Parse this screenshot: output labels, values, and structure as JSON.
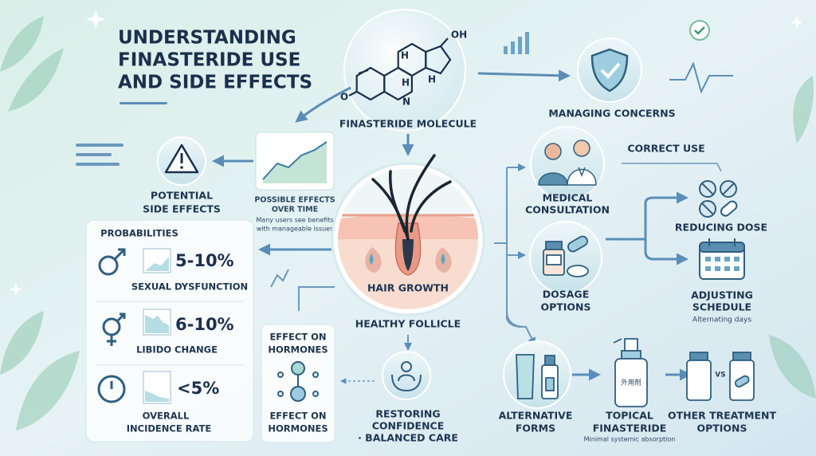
{
  "title": {
    "lines": [
      "UNDERSTANDING",
      "FINASTERIDE USE",
      "AND SIDE EFFECTS"
    ]
  },
  "molecule": {
    "atoms": [
      "OH",
      "H",
      "H",
      "H",
      "N",
      "O"
    ],
    "label": "FINASTERIDE MOLECULE"
  },
  "managing_concerns": {
    "label": "MANAGING CONCERNS"
  },
  "potential_side_effects": {
    "lines": [
      "POTENTIAL",
      "SIDE EFFECTS"
    ]
  },
  "possible_effects": {
    "title_lines": [
      "POSSIBLE EFFECTS",
      "OVER TIME"
    ],
    "note_lines": [
      "Many users see benefits",
      "with manageable issues"
    ]
  },
  "follicle": {
    "label": "HAIR GROWTH",
    "caption": "HEALTHY FOLLICLE"
  },
  "probabilities": {
    "title": "PROBABILITIES",
    "rows": [
      {
        "value": "5-10%",
        "label_lines": [
          "SEXUAL DYSFUNCTION"
        ]
      },
      {
        "value": "6-10%",
        "label_lines": [
          "LIBIDO CHANGE"
        ]
      },
      {
        "value": "<5%",
        "label_lines": [
          "OVERALL",
          "INCIDENCE RATE"
        ]
      }
    ]
  },
  "hormones": {
    "top_lines": [
      "EFFECT ON",
      "HORMONES"
    ],
    "bottom_lines": [
      "EFFECT ON",
      "HORMONES"
    ]
  },
  "restoring": {
    "lines": [
      "RESTORING",
      "CONFIDENCE",
      "· BALANCED CARE"
    ]
  },
  "correct_use": {
    "title": "CORRECT USE"
  },
  "medical_consultation": {
    "lines": [
      "MEDICAL",
      "CONSULTATION"
    ]
  },
  "dosage_options": {
    "lines": [
      "DOSAGE",
      "OPTIONS"
    ]
  },
  "reducing_dose": {
    "label": "REDUCING DOSE"
  },
  "adjusting_schedule": {
    "lines": [
      "ADJUSTING",
      "SCHEDULE"
    ],
    "note": "Alternating days"
  },
  "alternative_forms": {
    "lines": [
      "ALTERNATIVE",
      "FORMS"
    ]
  },
  "topical_finasteride": {
    "lines": [
      "TOPICAL",
      "FINASTERIDE"
    ],
    "note": "Minimal systemic absorption",
    "bottle_label": "外用剤"
  },
  "other_treatments": {
    "lines": [
      "OTHER TREATMENT",
      "OPTIONS"
    ],
    "badge": "VS"
  }
}
